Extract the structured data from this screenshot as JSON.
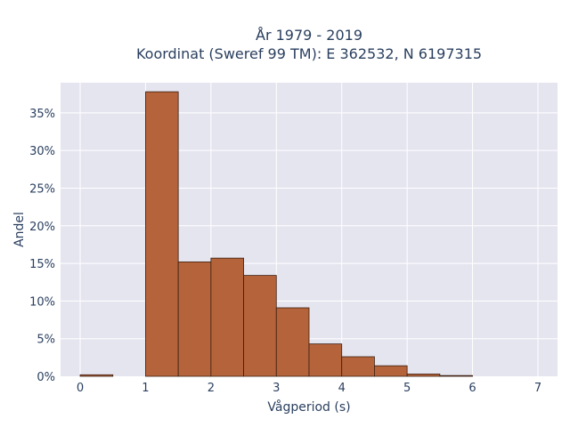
{
  "chart_data": {
    "type": "bar",
    "title_line1": "År 1979 - 2019",
    "title_line2": "Koordinat (Sweref 99 TM): E 362532, N 6197315",
    "xlabel": "Vågperiod (s)",
    "ylabel": "Andel",
    "xlim": [
      -0.3,
      7.3
    ],
    "ylim": [
      0,
      0.39
    ],
    "x_ticks": [
      0,
      1,
      2,
      3,
      4,
      5,
      6,
      7
    ],
    "y_ticks": [
      0,
      0.05,
      0.1,
      0.15,
      0.2,
      0.25,
      0.3,
      0.35
    ],
    "y_tick_labels": [
      "0%",
      "5%",
      "10%",
      "15%",
      "20%",
      "25%",
      "30%",
      "35%"
    ],
    "bin_width": 0.5,
    "bins": [
      {
        "x0": 0.0,
        "value": 0.002
      },
      {
        "x0": 0.5,
        "value": 0.0
      },
      {
        "x0": 1.0,
        "value": 0.378
      },
      {
        "x0": 1.5,
        "value": 0.152
      },
      {
        "x0": 2.0,
        "value": 0.157
      },
      {
        "x0": 2.5,
        "value": 0.134
      },
      {
        "x0": 3.0,
        "value": 0.091
      },
      {
        "x0": 3.5,
        "value": 0.043
      },
      {
        "x0": 4.0,
        "value": 0.026
      },
      {
        "x0": 4.5,
        "value": 0.014
      },
      {
        "x0": 5.0,
        "value": 0.003
      },
      {
        "x0": 5.5,
        "value": 0.001
      }
    ],
    "colors": {
      "bar_fill": "#b5633b",
      "bar_stroke": "#3a1f10",
      "plot_bg": "#e5e5f0",
      "grid": "#ffffff"
    },
    "grid": true,
    "legend": "none"
  }
}
